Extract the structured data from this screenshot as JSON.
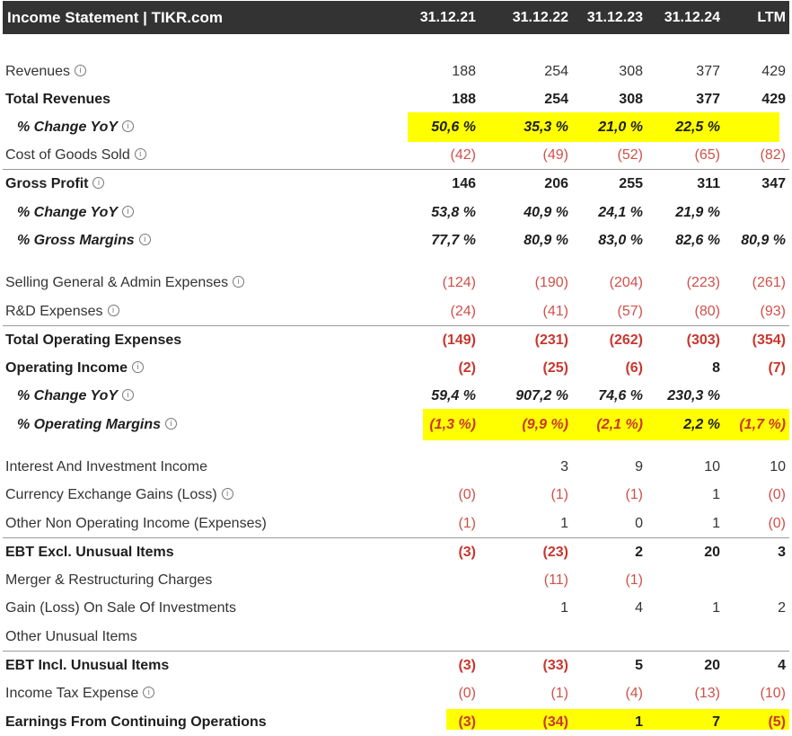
{
  "header": {
    "title": "Income Statement | TIKR.com",
    "columns": [
      "31.12.21",
      "31.12.22",
      "31.12.23",
      "31.12.24",
      "LTM"
    ]
  },
  "info_glyph": "i",
  "highlight_color": "#ffff00",
  "rows": [
    {
      "label": "Revenues",
      "info": true,
      "values": [
        "188",
        "254",
        "308",
        "377",
        "429"
      ]
    },
    {
      "label": "Total Revenues",
      "values": [
        "188",
        "254",
        "308",
        "377",
        "429"
      ]
    },
    {
      "label": "% Change YoY",
      "info": true,
      "values": [
        "50,6 %",
        "35,3 %",
        "21,0 %",
        "22,5 %",
        ""
      ]
    },
    {
      "label": "Cost of Goods Sold",
      "info": true,
      "values": [
        "(42)",
        "(49)",
        "(52)",
        "(65)",
        "(82)"
      ]
    },
    {
      "label": "Gross Profit",
      "info": true,
      "values": [
        "146",
        "206",
        "255",
        "311",
        "347"
      ]
    },
    {
      "label": "% Change YoY",
      "info": true,
      "values": [
        "53,8 %",
        "40,9 %",
        "24,1 %",
        "21,9 %",
        ""
      ]
    },
    {
      "label": "% Gross Margins",
      "info": true,
      "values": [
        "77,7 %",
        "80,9 %",
        "83,0 %",
        "82,6 %",
        "80,9 %"
      ]
    },
    {
      "label": "Selling General & Admin Expenses",
      "info": true,
      "values": [
        "(124)",
        "(190)",
        "(204)",
        "(223)",
        "(261)"
      ]
    },
    {
      "label": "R&D Expenses",
      "info": true,
      "values": [
        "(24)",
        "(41)",
        "(57)",
        "(80)",
        "(93)"
      ]
    },
    {
      "label": "Total Operating Expenses",
      "values": [
        "(149)",
        "(231)",
        "(262)",
        "(303)",
        "(354)"
      ]
    },
    {
      "label": "Operating Income",
      "info": true,
      "values": [
        "(2)",
        "(25)",
        "(6)",
        "8",
        "(7)"
      ]
    },
    {
      "label": "% Change YoY",
      "info": true,
      "values": [
        "59,4 %",
        "907,2 %",
        "74,6 %",
        "230,3 %",
        ""
      ]
    },
    {
      "label": "% Operating Margins",
      "info": true,
      "values": [
        "(1,3 %)",
        "(9,9 %)",
        "(2,1 %)",
        "2,2 %",
        "(1,7 %)"
      ]
    },
    {
      "label": "Interest And Investment Income",
      "values": [
        "",
        "3",
        "9",
        "10",
        "10"
      ]
    },
    {
      "label": "Currency Exchange Gains (Loss)",
      "info": true,
      "values": [
        "(0)",
        "(1)",
        "(1)",
        "1",
        "(0)"
      ]
    },
    {
      "label": "Other Non Operating Income (Expenses)",
      "values": [
        "(1)",
        "1",
        "0",
        "1",
        "(0)"
      ]
    },
    {
      "label": "EBT Excl. Unusual Items",
      "values": [
        "(3)",
        "(23)",
        "2",
        "20",
        "3"
      ]
    },
    {
      "label": "Merger & Restructuring Charges",
      "values": [
        "",
        "(11)",
        "(1)",
        "",
        ""
      ]
    },
    {
      "label": "Gain (Loss) On Sale Of Investments",
      "values": [
        "",
        "1",
        "4",
        "1",
        "2"
      ]
    },
    {
      "label": "Other Unusual Items",
      "values": [
        "",
        "",
        "",
        "",
        ""
      ]
    },
    {
      "label": "EBT Incl. Unusual Items",
      "values": [
        "(3)",
        "(33)",
        "5",
        "20",
        "4"
      ]
    },
    {
      "label": "Income Tax Expense",
      "info": true,
      "values": [
        "(0)",
        "(1)",
        "(4)",
        "(13)",
        "(10)"
      ]
    },
    {
      "label": "Earnings From Continuing Operations",
      "values": [
        "(3)",
        "(34)",
        "1",
        "7",
        "(5)"
      ]
    }
  ]
}
